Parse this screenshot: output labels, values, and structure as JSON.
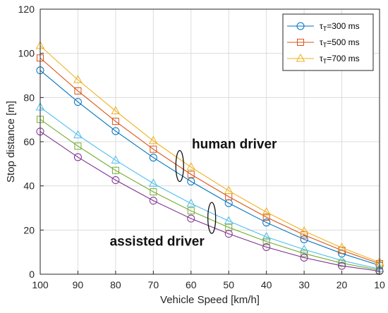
{
  "chart_data": {
    "type": "line",
    "xlabel": "Vehicle Speed [km/h]",
    "ylabel": "Stop distance [m]",
    "x_reversed": true,
    "xlim": [
      10,
      100
    ],
    "ylim": [
      0,
      120
    ],
    "x": [
      100,
      90,
      80,
      70,
      60,
      50,
      40,
      30,
      20,
      10
    ],
    "xticks": [
      "100",
      "90",
      "80",
      "70",
      "60",
      "50",
      "40",
      "30",
      "20",
      "10"
    ],
    "yticks": [
      "0",
      "20",
      "40",
      "60",
      "80",
      "100",
      "120"
    ],
    "grid": true,
    "legend_position": "top-right",
    "legend": [
      {
        "text": "τ",
        "sub": "T",
        "rest": "=300 ms",
        "marker": "circle",
        "color": "#0072BD"
      },
      {
        "text": "τ",
        "sub": "T",
        "rest": "=500 ms",
        "marker": "square",
        "color": "#D95319"
      },
      {
        "text": "τ",
        "sub": "T",
        "rest": "=700 ms",
        "marker": "triangle",
        "color": "#EDB120"
      }
    ],
    "series": [
      {
        "group": "human driver",
        "marker": "circle",
        "color": "#0072BD",
        "values": [
          92.3,
          78.0,
          64.8,
          52.8,
          42.0,
          32.2,
          23.4,
          15.8,
          9.4,
          4.0
        ]
      },
      {
        "group": "human driver",
        "marker": "square",
        "color": "#D95319",
        "values": [
          97.9,
          83.0,
          69.2,
          56.6,
          45.2,
          35.1,
          25.8,
          17.8,
          10.8,
          4.8
        ]
      },
      {
        "group": "human driver",
        "marker": "triangle",
        "color": "#EDB120",
        "values": [
          103.4,
          88.0,
          73.9,
          60.4,
          48.5,
          37.8,
          28.1,
          19.5,
          12.0,
          5.4
        ]
      },
      {
        "group": "assisted driver",
        "marker": "triangle",
        "color": "#4DBEEE",
        "values": [
          75.6,
          63.0,
          51.6,
          41.1,
          32.0,
          24.1,
          16.9,
          11.2,
          6.2,
          2.4
        ]
      },
      {
        "group": "assisted driver",
        "marker": "square",
        "color": "#77AC30",
        "values": [
          70.1,
          58.0,
          47.0,
          37.3,
          28.7,
          21.2,
          14.8,
          9.4,
          5.0,
          1.9
        ]
      },
      {
        "group": "assisted driver",
        "marker": "circle",
        "color": "#7E2F8E",
        "values": [
          64.6,
          53.0,
          42.6,
          33.3,
          25.2,
          18.3,
          12.3,
          7.5,
          3.8,
          1.4
        ]
      }
    ],
    "annotations": [
      {
        "text": "human driver",
        "ellipse_center": [
          63,
          49
        ],
        "label_x": 48.5,
        "label_y": 57
      },
      {
        "text": "assisted driver",
        "ellipse_center": [
          54.5,
          25.5
        ],
        "label_x": 69,
        "label_y": 13
      }
    ]
  }
}
